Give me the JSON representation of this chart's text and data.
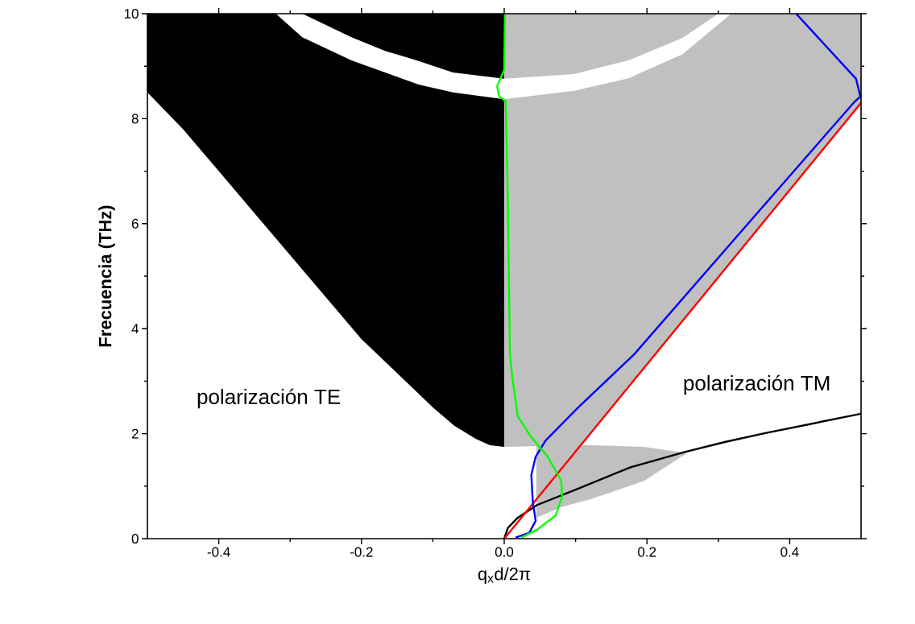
{
  "chart_data": {
    "type": "line",
    "xlabel": "q$_{x}$d/2π",
    "ylabel": "Frecuencia (THz)",
    "xlim": [
      -0.5,
      0.5
    ],
    "ylim": [
      0,
      10
    ],
    "xticks": [
      -0.4,
      -0.2,
      {
        "value": 0,
        "label": "0.0"
      },
      0.2,
      0.4
    ],
    "yticks": [
      0,
      2,
      4,
      6,
      8,
      10
    ],
    "series": [
      {
        "type": "area",
        "color": "#000000",
        "x": [
          -0.5,
          0,
          0,
          -0.02,
          -0.04,
          -0.07,
          -0.1,
          -0.15,
          -0.2,
          -0.25,
          -0.3,
          -0.35,
          -0.4,
          -0.45,
          -0.5
        ],
        "values": [
          10,
          10,
          1.75,
          1.78,
          1.9,
          2.15,
          2.5,
          3.15,
          3.8,
          4.6,
          5.4,
          6.2,
          7.0,
          7.8,
          8.5
        ]
      },
      {
        "type": "area",
        "color": "#c0c0c0",
        "x": [
          0,
          0.5,
          0.5,
          0.107,
          0
        ],
        "values": [
          10,
          10,
          8.3,
          1.78,
          1.75
        ]
      },
      {
        "type": "area",
        "color": "#c0c0c0",
        "x": [
          0.045,
          0.121,
          0.196,
          0.256,
          0.196,
          0.121,
          0.08,
          0.045
        ],
        "values": [
          1.78,
          1.78,
          1.75,
          1.63,
          1.1,
          0.75,
          0.6,
          0.4
        ]
      },
      {
        "type": "area",
        "color": "#ffffff",
        "x": [
          -0.283,
          -0.214,
          -0.167,
          -0.12,
          -0.072,
          0,
          0.098,
          0.174,
          0.25,
          0.3,
          0.318,
          0.25,
          0.174,
          0.098,
          0,
          -0.072,
          -0.12,
          -0.167,
          -0.214,
          -0.283,
          -0.32
        ],
        "values": [
          10,
          9.55,
          9.29,
          9.1,
          8.88,
          8.76,
          8.85,
          9.11,
          9.54,
          10,
          10,
          9.23,
          8.77,
          8.53,
          8.37,
          8.5,
          8.65,
          8.88,
          9.11,
          9.55,
          10
        ]
      },
      {
        "color": "#000000",
        "x": [
          0,
          0.005,
          0.019,
          0.046,
          0.103,
          0.177,
          0.253,
          0.309,
          0.366,
          0.5
        ],
        "values": [
          0,
          0.2,
          0.4,
          0.64,
          0.95,
          1.36,
          1.65,
          1.84,
          2.01,
          2.38
        ]
      },
      {
        "color": "#ff0000",
        "x": [
          0,
          0.1,
          0.2,
          0.3,
          0.4,
          0.5
        ],
        "values": [
          0,
          1.66,
          3.32,
          4.98,
          6.64,
          8.3
        ]
      },
      {
        "color": "#0000ff",
        "x": [
          0.409,
          0.493,
          0.499,
          0.49,
          0.35,
          0.182,
          0.103,
          0.058,
          0.044,
          0.038,
          0.04,
          0.044,
          0.035,
          0.016
        ],
        "values": [
          10,
          8.76,
          8.42,
          8.31,
          6.13,
          3.51,
          2.49,
          1.87,
          1.56,
          1.21,
          0.71,
          0.34,
          0.11,
          0.02
        ]
      },
      {
        "color": "#00ff00",
        "x": [
          0.001,
          0,
          -0.01,
          -0.007,
          0.002,
          0.005,
          0.008,
          0.012,
          0.019,
          0.038,
          0.061,
          0.08,
          0.081,
          0.072,
          0.046,
          0.024
        ],
        "values": [
          10,
          8.93,
          8.62,
          8.42,
          8.34,
          6.53,
          3.51,
          3.0,
          2.33,
          1.93,
          1.56,
          1.1,
          0.8,
          0.44,
          0.17,
          0.02
        ]
      }
    ],
    "annotations": [
      "polarización TE",
      "polarización TM"
    ]
  }
}
